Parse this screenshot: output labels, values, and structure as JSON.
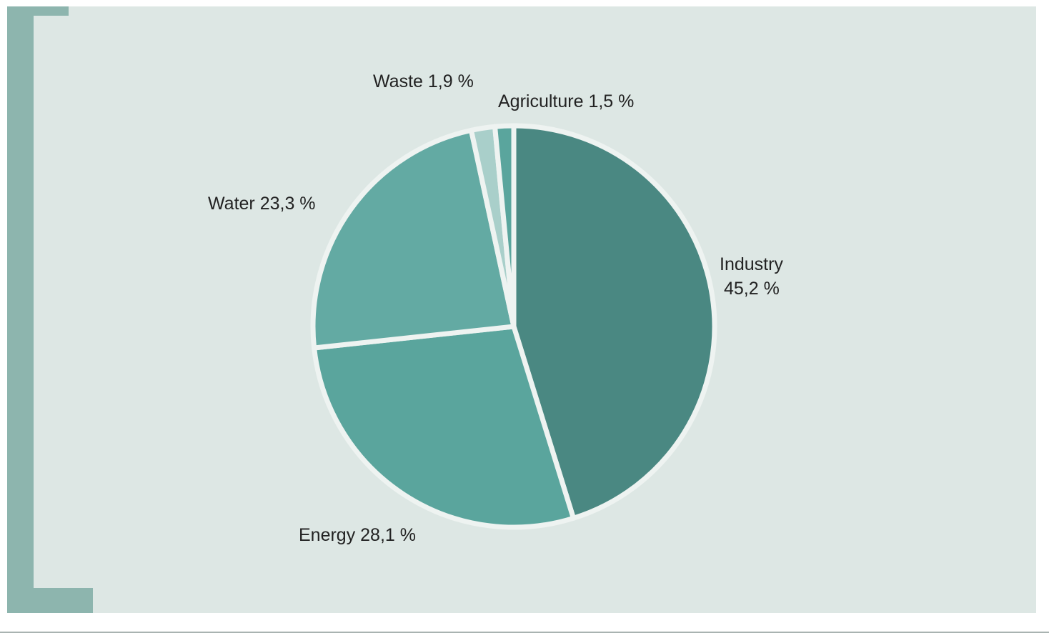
{
  "chart_data": {
    "type": "pie",
    "title": "",
    "slices": [
      {
        "name": "Industry",
        "value": 45.2,
        "label_line1": "Industry",
        "label_line2": "45,2 %",
        "color": "#4a8882"
      },
      {
        "name": "Energy",
        "value": 28.1,
        "label_line1": "Energy 28,1 %",
        "label_line2": "",
        "color": "#5aa59d"
      },
      {
        "name": "Water",
        "value": 23.3,
        "label_line1": "Water 23,3 %",
        "label_line2": "",
        "color": "#63aaa3"
      },
      {
        "name": "Waste",
        "value": 1.9,
        "label_line1": "Waste 1,9 %",
        "label_line2": "",
        "color": "#a9cfca"
      },
      {
        "name": "Agriculture",
        "value": 1.5,
        "label_line1": "Agriculture 1,5 %",
        "label_line2": "",
        "color": "#5aa59d"
      }
    ],
    "start_angle_deg": 0,
    "direction": "clockwise",
    "legend": "none",
    "label_placement": "outside"
  },
  "colors": {
    "panel_background": "#dde7e4",
    "bracket": "#8db5ae",
    "slice_separator": "#eef3f1"
  }
}
